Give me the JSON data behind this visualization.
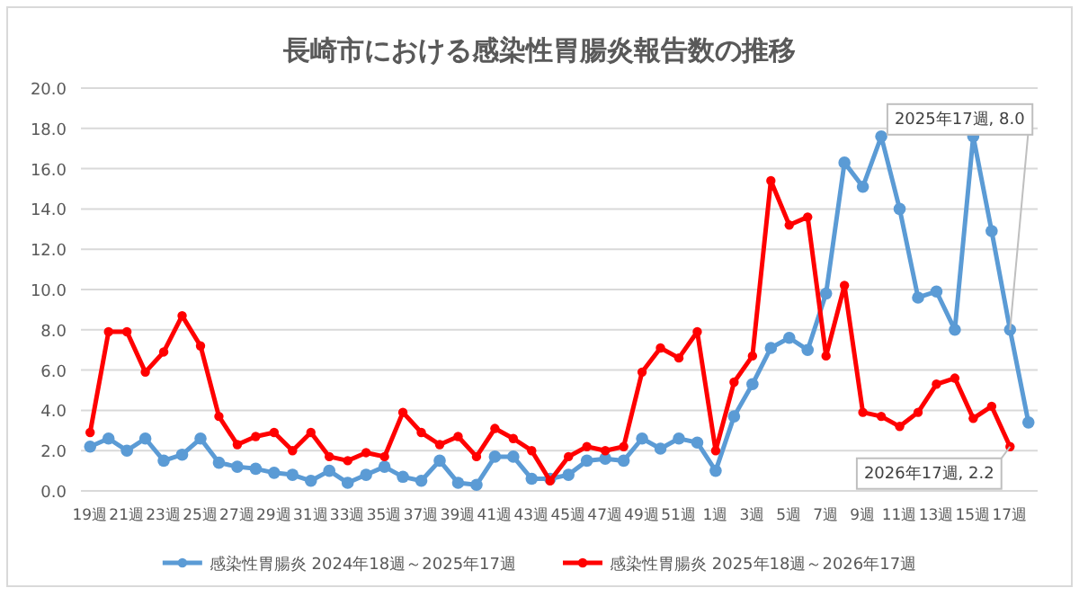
{
  "chart_data": {
    "type": "line",
    "title": "長崎市における感染性胃腸炎報告数の推移",
    "categories": [
      "19週",
      null,
      "21週",
      null,
      "23週",
      null,
      "25週",
      null,
      "27週",
      null,
      "29週",
      null,
      "31週",
      null,
      "33週",
      null,
      "35週",
      null,
      "37週",
      null,
      "39週",
      null,
      "41週",
      null,
      "43週",
      null,
      "45週",
      null,
      "47週",
      null,
      "49週",
      null,
      "51週",
      null,
      "1週",
      null,
      "3週",
      null,
      "5週",
      null,
      "7週",
      null,
      "9週",
      null,
      "11週",
      null,
      "13週",
      null,
      "15週",
      null,
      "17週",
      null
    ],
    "series": [
      {
        "name": "感染性胃腸炎 2024年18週～2025年17週",
        "color": "#5b9bd5",
        "values": [
          2.2,
          2.6,
          2.0,
          2.6,
          1.5,
          1.8,
          2.6,
          1.4,
          1.2,
          1.1,
          0.9,
          0.8,
          0.5,
          1.0,
          0.4,
          0.8,
          1.2,
          0.7,
          0.5,
          1.5,
          0.4,
          0.3,
          1.7,
          1.7,
          0.6,
          0.6,
          0.8,
          1.5,
          1.6,
          1.5,
          2.6,
          2.1,
          2.6,
          2.4,
          1.0,
          3.7,
          5.3,
          7.1,
          7.6,
          7.0,
          9.8,
          16.3,
          15.1,
          17.6,
          14.0,
          9.6,
          9.9,
          8.0,
          17.6,
          12.9,
          8.0,
          3.4
        ]
      },
      {
        "name": "感染性胃腸炎 2025年18週～2026年17週",
        "color": "#ff0000",
        "values": [
          2.9,
          7.9,
          7.9,
          5.9,
          6.9,
          8.7,
          7.2,
          3.7,
          2.3,
          2.7,
          2.9,
          2.0,
          2.9,
          1.7,
          1.5,
          1.9,
          1.7,
          3.9,
          2.9,
          2.3,
          2.7,
          1.7,
          3.1,
          2.6,
          2.0,
          0.5,
          1.7,
          2.2,
          2.0,
          2.2,
          5.9,
          7.1,
          6.6,
          7.9,
          2.0,
          5.4,
          6.7,
          15.4,
          13.2,
          13.6,
          6.7,
          10.2,
          3.9,
          3.7,
          3.2,
          3.9,
          5.3,
          5.6,
          3.6,
          4.2,
          2.2,
          null
        ]
      }
    ],
    "ylim": [
      0,
      20
    ],
    "yticks": [
      {
        "value": 0,
        "label": "0.0"
      },
      {
        "value": 2,
        "label": "2.0"
      },
      {
        "value": 4,
        "label": "4.0"
      },
      {
        "value": 6,
        "label": "6.0"
      },
      {
        "value": 8,
        "label": "8.0"
      },
      {
        "value": 10,
        "label": "10.0"
      },
      {
        "value": 12,
        "label": "12.0"
      },
      {
        "value": 14,
        "label": "14.0"
      },
      {
        "value": 16,
        "label": "16.0"
      },
      {
        "value": 18,
        "label": "18.0"
      },
      {
        "value": 20,
        "label": "20.0"
      }
    ],
    "grid": "y",
    "legend": "bottom",
    "marker": "circle",
    "line_style": "solid",
    "annotations": [
      {
        "text": "2025年17週, 8.0",
        "x": "17週",
        "y": 8.0
      },
      {
        "text": "2026年17週, 2.2",
        "x": "17週",
        "y": 2.2
      }
    ]
  }
}
